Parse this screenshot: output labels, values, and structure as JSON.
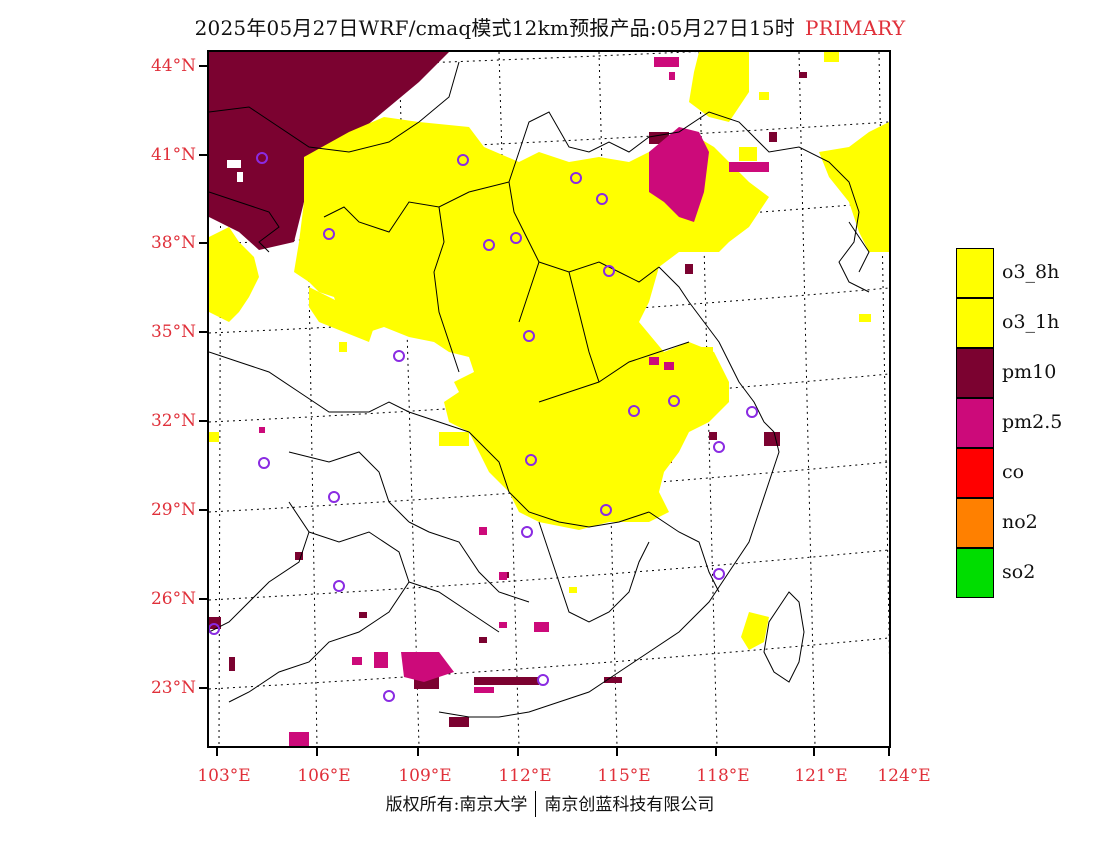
{
  "header": {
    "title": "2025年05月27日WRF/cmaq模式12km预报产品:05月27日15时",
    "tag": "PRIMARY"
  },
  "axes": {
    "lat_labels": [
      "44°N",
      "41°N",
      "38°N",
      "35°N",
      "32°N",
      "29°N",
      "26°N",
      "23°N"
    ],
    "lon_labels": [
      "103°E",
      "106°E",
      "109°E",
      "112°E",
      "115°E",
      "118°E",
      "121°E",
      "124°E"
    ]
  },
  "legend": {
    "items": [
      {
        "label": "o3_8h",
        "color": "#ffff00"
      },
      {
        "label": "o3_1h",
        "color": "#ffff00"
      },
      {
        "label": "pm10",
        "color": "#7b0230"
      },
      {
        "label": "pm2.5",
        "color": "#cc0a7a"
      },
      {
        "label": "co",
        "color": "#ff0000"
      },
      {
        "label": "no2",
        "color": "#ff8000"
      },
      {
        "label": "so2",
        "color": "#00dd00"
      }
    ]
  },
  "footer": {
    "left": "版权所有:南京大学",
    "right": "南京创蓝科技有限公司"
  },
  "colors": {
    "o3": "#ffff00",
    "pm10": "#7b0230",
    "pm25": "#cc0a7a",
    "station": "#8a2be2",
    "axis_label": "#e0303a"
  }
}
